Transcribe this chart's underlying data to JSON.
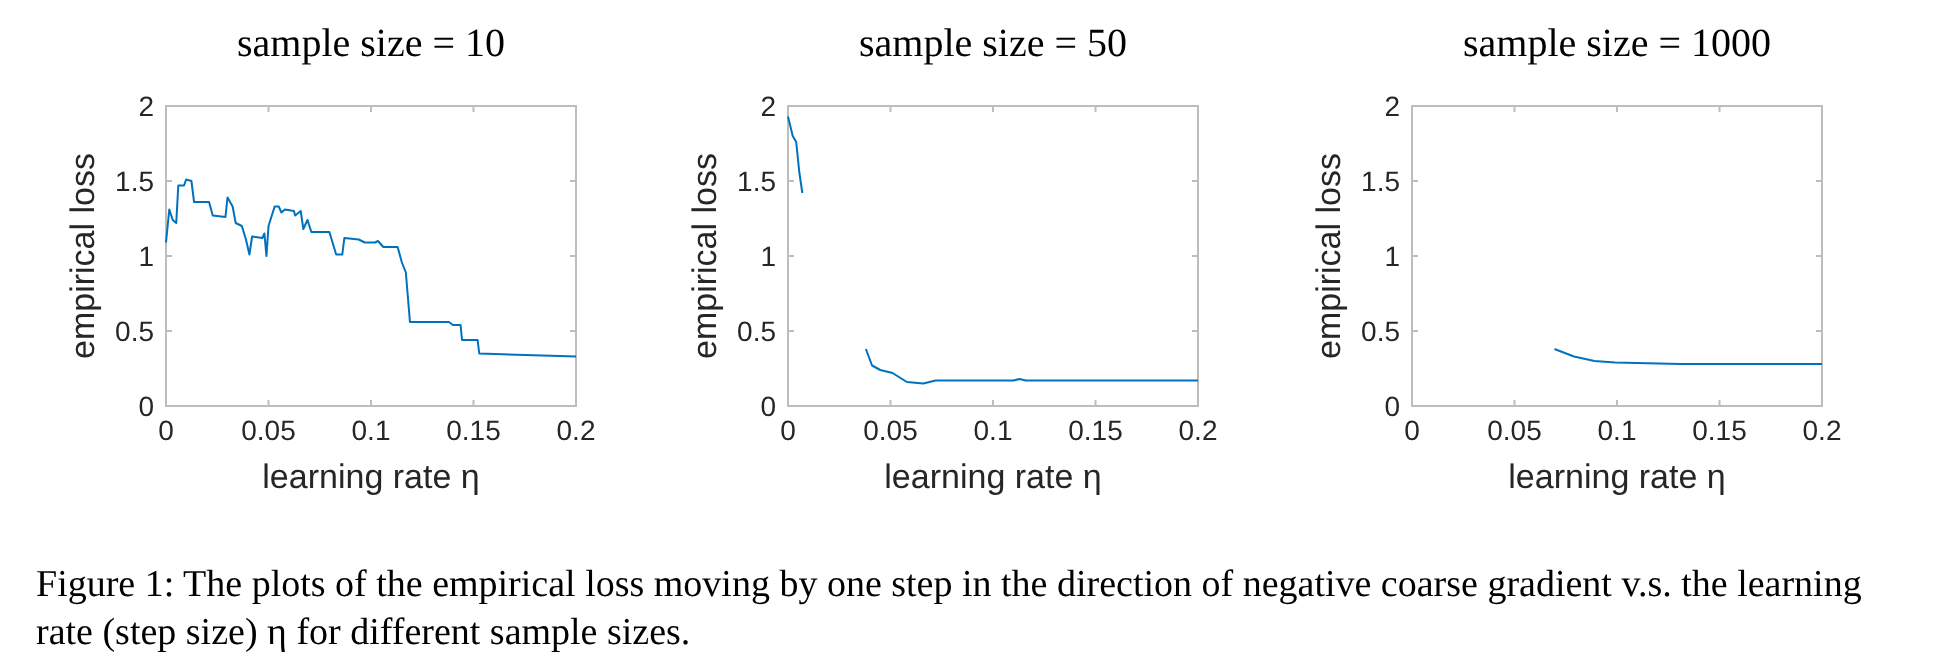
{
  "chart_data": [
    {
      "type": "line",
      "title": "sample size = 10",
      "xlabel": "learning rate η",
      "ylabel": "empirical loss",
      "color": "#0072bd",
      "xlim": [
        0,
        0.2
      ],
      "ylim": [
        0,
        2
      ],
      "xticks": [
        0,
        0.05,
        0.1,
        0.15,
        0.2
      ],
      "yticks": [
        0,
        0.5,
        1,
        1.5,
        2
      ],
      "x": [
        0,
        0.0016,
        0.0033,
        0.005,
        0.006,
        0.0088,
        0.0098,
        0.0124,
        0.0137,
        0.021,
        0.0228,
        0.029,
        0.03,
        0.0325,
        0.034,
        0.037,
        0.039,
        0.0407,
        0.042,
        0.047,
        0.048,
        0.049,
        0.05,
        0.053,
        0.055,
        0.0563,
        0.058,
        0.0624,
        0.063,
        0.0657,
        0.067,
        0.069,
        0.0709,
        0.0797,
        0.083,
        0.086,
        0.087,
        0.094,
        0.097,
        0.102,
        0.1034,
        0.106,
        0.113,
        0.115,
        0.117,
        0.119,
        0.138,
        0.14,
        0.1437,
        0.1444,
        0.152,
        0.1528,
        0.2
      ],
      "values": [
        1.09,
        1.31,
        1.24,
        1.22,
        1.47,
        1.47,
        1.51,
        1.5,
        1.36,
        1.36,
        1.27,
        1.26,
        1.39,
        1.33,
        1.22,
        1.2,
        1.11,
        1.01,
        1.13,
        1.12,
        1.15,
        1.0,
        1.2,
        1.33,
        1.33,
        1.29,
        1.31,
        1.3,
        1.27,
        1.3,
        1.18,
        1.24,
        1.16,
        1.16,
        1.01,
        1.01,
        1.12,
        1.11,
        1.09,
        1.09,
        1.1,
        1.06,
        1.06,
        0.96,
        0.89,
        0.56,
        0.56,
        0.54,
        0.54,
        0.44,
        0.44,
        0.35,
        0.33
      ],
      "annotations": [
        "Figure 1: The plots of the empirical loss moving by one step in the direction of negative coarse gradient v.s. the learning rate (step size) η for different sample sizes."
      ]
    },
    {
      "type": "line",
      "title": "sample size = 50",
      "xlabel": "learning rate η",
      "ylabel": "empirical loss",
      "color": "#0072bd",
      "xlim": [
        0,
        0.2
      ],
      "ylim": [
        0,
        2
      ],
      "xticks": [
        0,
        0.05,
        0.1,
        0.15,
        0.2
      ],
      "yticks": [
        0,
        0.5,
        1,
        1.5,
        2
      ],
      "x": [
        0,
        0.0023,
        0.004,
        0.0055,
        0.007,
        0.02,
        0.038,
        0.041,
        0.045,
        0.051,
        0.058,
        0.066,
        0.072,
        0.084,
        0.11,
        0.113,
        0.116,
        0.2
      ],
      "values": [
        1.93,
        1.8,
        1.76,
        1.56,
        1.42,
        null,
        0.38,
        0.27,
        0.24,
        0.22,
        0.16,
        0.15,
        0.17,
        0.17,
        0.17,
        0.18,
        0.17,
        0.17
      ]
    },
    {
      "type": "line",
      "title": "sample size = 1000",
      "xlabel": "learning rate η",
      "ylabel": "empirical loss",
      "color": "#0072bd",
      "xlim": [
        0,
        0.2
      ],
      "ylim": [
        0,
        2
      ],
      "xticks": [
        0,
        0.05,
        0.1,
        0.15,
        0.2
      ],
      "yticks": [
        0,
        0.5,
        1,
        1.5,
        2
      ],
      "x": [
        0.0695,
        0.079,
        0.089,
        0.099,
        0.131,
        0.2
      ],
      "values": [
        0.38,
        0.33,
        0.3,
        0.29,
        0.28,
        0.28
      ]
    }
  ]
}
